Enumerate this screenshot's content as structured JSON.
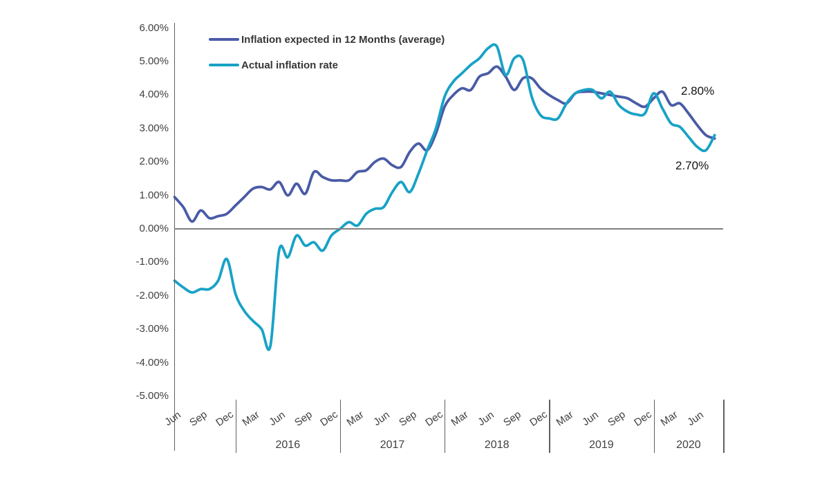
{
  "chart_data": {
    "type": "line",
    "smooth": true,
    "background": "#ffffff",
    "grid": "off",
    "legend_position": "top-left-inside",
    "y_axis": {
      "unit": "percent",
      "min": -5,
      "max": 6,
      "tick_labels": [
        "6.00%",
        "5.00%",
        "4.00%",
        "3.00%",
        "2.00%",
        "1.00%",
        "0.00%",
        "-1.00%",
        "-2.00%",
        "-3.00%",
        "-4.00%",
        "-5.00%"
      ],
      "tick_values": [
        6,
        5,
        4,
        3,
        2,
        1,
        0,
        -1,
        -2,
        -3,
        -4,
        -5
      ]
    },
    "x_axis": {
      "interval": "monthly",
      "start": "Jun 2015",
      "end": "Aug 2020",
      "month_tick_labels": [
        "Jun",
        "Sep",
        "Dec",
        "Mar",
        "Jun",
        "Sep",
        "Dec",
        "Mar",
        "Jun",
        "Sep",
        "Dec",
        "Mar",
        "Jun",
        "Sep",
        "Dec",
        "Mar",
        "Jun",
        "Sep",
        "Dec",
        "Mar",
        "Jun"
      ],
      "month_tick_step": 3,
      "year_labels": [
        "2016",
        "2017",
        "2018",
        "2019",
        "2020"
      ]
    },
    "colors": {
      "expected_line": "#4A5BA6",
      "actual_line": "#18A2C6",
      "axis": "#5f5f5f",
      "zero_line": "#7f7f7f",
      "tick_text": "#404040",
      "legend_text": "#363636",
      "annotation_text": "#141414"
    },
    "series": [
      {
        "name": "Inflation expected in 12 Months (average)",
        "color": "#4A5BA6",
        "values": [
          0.95,
          0.65,
          0.22,
          0.55,
          0.32,
          0.38,
          0.45,
          0.7,
          0.95,
          1.2,
          1.25,
          1.18,
          1.4,
          1.0,
          1.35,
          1.05,
          1.7,
          1.55,
          1.45,
          1.45,
          1.45,
          1.7,
          1.75,
          2.0,
          2.1,
          1.9,
          1.85,
          2.3,
          2.55,
          2.35,
          2.85,
          3.65,
          4.0,
          4.2,
          4.15,
          4.55,
          4.65,
          4.85,
          4.55,
          4.15,
          4.5,
          4.5,
          4.2,
          4.0,
          3.85,
          3.75,
          4.05,
          4.1,
          4.1,
          4.05,
          4.0,
          3.95,
          3.9,
          3.75,
          3.65,
          3.9,
          4.1,
          3.7,
          3.75,
          3.45,
          3.1,
          2.8,
          2.7
        ]
      },
      {
        "name": "Actual inflation rate",
        "color": "#18A2C6",
        "values": [
          -1.55,
          -1.75,
          -1.9,
          -1.8,
          -1.8,
          -1.55,
          -0.9,
          -1.95,
          -2.45,
          -2.75,
          -3.0,
          -3.5,
          -0.65,
          -0.85,
          -0.2,
          -0.5,
          -0.4,
          -0.65,
          -0.2,
          0.0,
          0.2,
          0.1,
          0.45,
          0.6,
          0.65,
          1.1,
          1.4,
          1.1,
          1.65,
          2.35,
          3.0,
          3.95,
          4.4,
          4.65,
          4.9,
          5.1,
          5.4,
          5.45,
          4.6,
          5.1,
          5.05,
          3.95,
          3.4,
          3.3,
          3.3,
          3.75,
          4.05,
          4.15,
          4.15,
          3.9,
          4.1,
          3.7,
          3.5,
          3.42,
          3.45,
          4.05,
          3.6,
          3.15,
          3.05,
          2.75,
          2.45,
          2.35,
          2.8
        ]
      }
    ],
    "annotations": [
      {
        "text": "2.80%",
        "for_series": "Actual inflation rate",
        "at": "last point"
      },
      {
        "text": "2.70%",
        "for_series": "Inflation expected in 12 Months (average)",
        "at": "last point"
      }
    ]
  }
}
